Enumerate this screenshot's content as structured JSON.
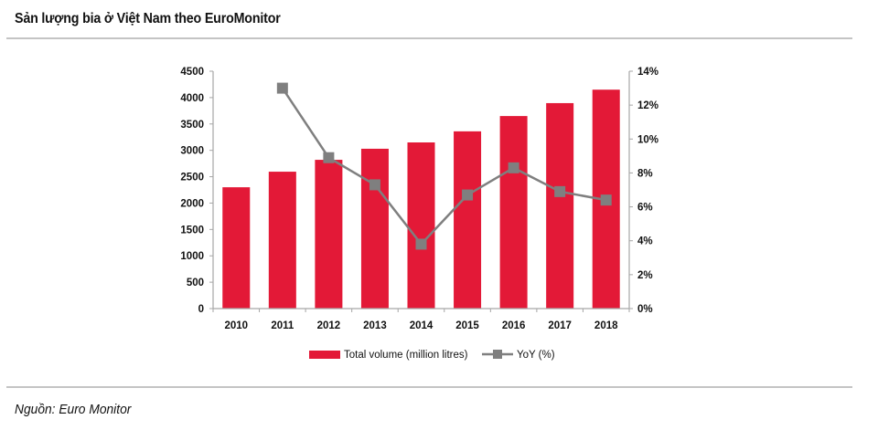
{
  "header": {
    "title": "Sản lượng bia ở Việt Nam theo EuroMonitor"
  },
  "footer": {
    "source": "Nguồn: Euro Monitor"
  },
  "chart_data": {
    "type": "bar",
    "title": "Sản lượng bia ở Việt Nam theo EuroMonitor",
    "categories": [
      "2010",
      "2011",
      "2012",
      "2013",
      "2014",
      "2015",
      "2016",
      "2017",
      "2018"
    ],
    "series": [
      {
        "name": "Total volume (million litres)",
        "type": "bar",
        "axis": "left",
        "color": "#e31937",
        "values": [
          2300,
          2595,
          2820,
          3030,
          3150,
          3360,
          3650,
          3895,
          4150
        ]
      },
      {
        "name": "YoY (%)",
        "type": "line",
        "axis": "right",
        "color": "#7f7f7f",
        "marker": "square",
        "values": [
          null,
          13.0,
          8.9,
          7.3,
          3.8,
          6.7,
          8.3,
          6.9,
          6.4
        ]
      }
    ],
    "y_left": {
      "min": 0,
      "max": 4500,
      "step": 500,
      "ticks": [
        "0",
        "500",
        "1000",
        "1500",
        "2000",
        "2500",
        "3000",
        "3500",
        "4000",
        "4500"
      ]
    },
    "y_right": {
      "min": 0,
      "max": 14,
      "step": 2,
      "ticks": [
        "0%",
        "2%",
        "4%",
        "6%",
        "8%",
        "10%",
        "12%",
        "14%"
      ]
    },
    "xlabel": "",
    "ylabel": "",
    "grid": false,
    "legend": {
      "position": "bottom",
      "entries": [
        "Total volume (million litres)",
        "YoY (%)"
      ]
    }
  }
}
